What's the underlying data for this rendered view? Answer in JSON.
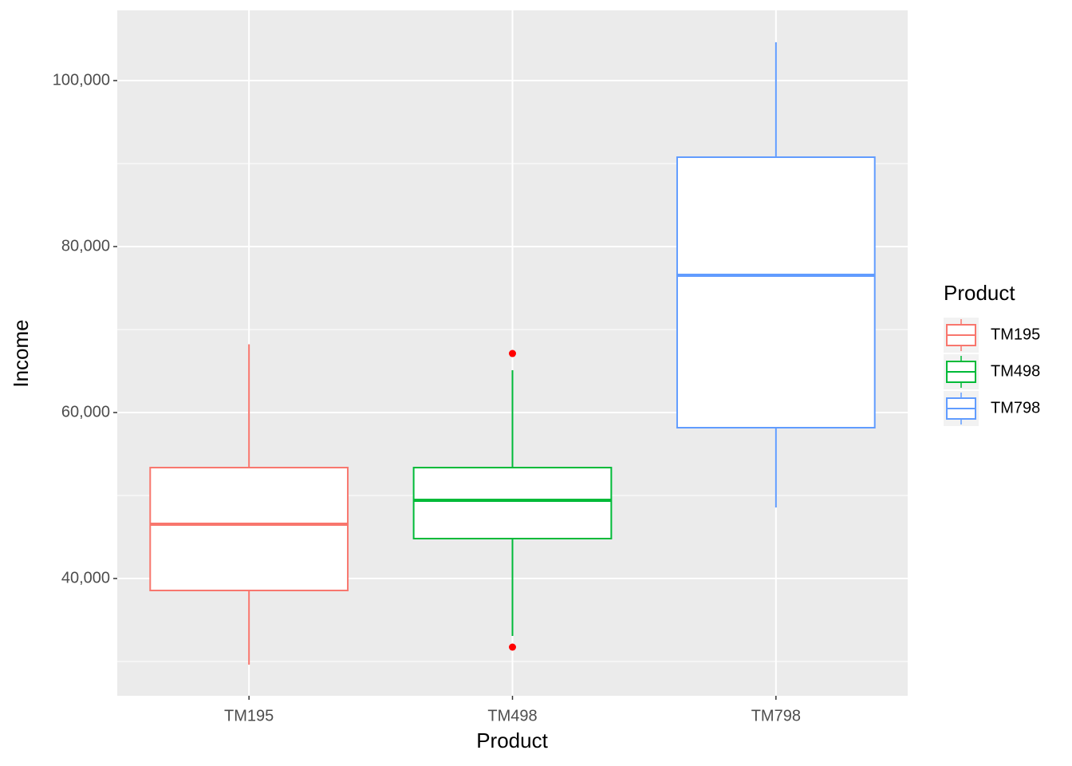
{
  "chart_data": {
    "type": "boxplot",
    "x_label": "Product",
    "y_label": "Income",
    "legend_title": "Product",
    "categories": [
      "TM195",
      "TM498",
      "TM798"
    ],
    "series": [
      {
        "name": "TM195",
        "color": "#F8766D",
        "whisker_low": 29620,
        "q1": 38560,
        "median": 46540,
        "q3": 53365,
        "whisker_high": 68220,
        "outliers": []
      },
      {
        "name": "TM498",
        "color": "#00BA38",
        "whisker_low": 33080,
        "q1": 44810,
        "median": 49425,
        "q3": 53365,
        "whisker_high": 65100,
        "outliers": [
          67115,
          31735
        ]
      },
      {
        "name": "TM798",
        "color": "#619CFF",
        "whisker_low": 48560,
        "q1": 58175,
        "median": 76540,
        "q3": 90770,
        "whisker_high": 104615,
        "outliers": []
      }
    ],
    "outlier_color": "#FF0000",
    "ylim": [
      25870,
      108460
    ],
    "yticks": [
      {
        "value": 40000,
        "label": "40,000"
      },
      {
        "value": 60000,
        "label": "60,000"
      },
      {
        "value": 80000,
        "label": "80,000"
      },
      {
        "value": 100000,
        "label": "100,000"
      }
    ],
    "yminor": [
      30000,
      50000,
      70000,
      90000
    ],
    "grid": true,
    "legend": "right"
  }
}
